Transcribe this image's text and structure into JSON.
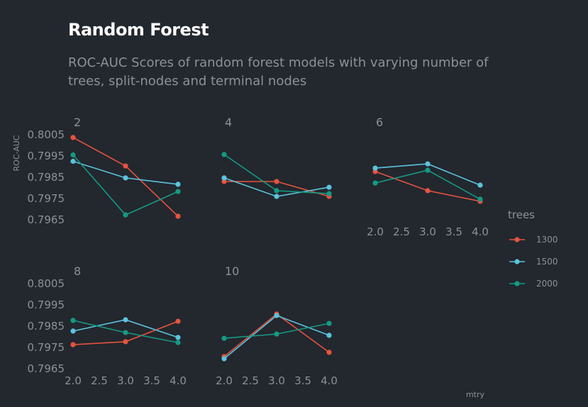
{
  "title": "Random Forest",
  "subtitle": "ROC-AUC Scores of random forest models with varying number of trees, split-nodes and terminal nodes",
  "chart_data": {
    "type": "line",
    "facet_by": "min_n",
    "xlabel": "mtry",
    "ylabel": "ROC-AUC",
    "x_ticks": [
      "2.0",
      "2.5",
      "3.0",
      "3.5",
      "4.0"
    ],
    "y_ticks": [
      "0.8005",
      "0.7995",
      "0.7985",
      "0.7975",
      "0.7965"
    ],
    "xlim": [
      2.0,
      4.0
    ],
    "ylim": [
      0.7964,
      0.8005
    ],
    "grid": false,
    "legend": {
      "title": "trees",
      "position": "right",
      "entries": [
        {
          "label": "1300",
          "color": "#e5533f"
        },
        {
          "label": "1500",
          "color": "#5bc3dc"
        },
        {
          "label": "2000",
          "color": "#149a83"
        }
      ]
    },
    "panels": [
      {
        "label": "2",
        "series": [
          {
            "name": "1300",
            "x": [
              2,
              3,
              4
            ],
            "y": [
              0.80037,
              0.79903,
              0.79667
            ]
          },
          {
            "name": "1500",
            "x": [
              2,
              3,
              4
            ],
            "y": [
              0.79925,
              0.79847,
              0.79817
            ]
          },
          {
            "name": "2000",
            "x": [
              2,
              3,
              4
            ],
            "y": [
              0.79955,
              0.79673,
              0.79783
            ]
          }
        ]
      },
      {
        "label": "4",
        "series": [
          {
            "name": "1300",
            "x": [
              2,
              3,
              4
            ],
            "y": [
              0.7983,
              0.7983,
              0.7976
            ]
          },
          {
            "name": "1500",
            "x": [
              2,
              3,
              4
            ],
            "y": [
              0.79847,
              0.7976,
              0.79803
            ]
          },
          {
            "name": "2000",
            "x": [
              2,
              3,
              4
            ],
            "y": [
              0.79957,
              0.79787,
              0.79773
            ]
          }
        ]
      },
      {
        "label": "6",
        "series": [
          {
            "name": "1300",
            "x": [
              2,
              3,
              4
            ],
            "y": [
              0.79877,
              0.79787,
              0.79737
            ]
          },
          {
            "name": "1500",
            "x": [
              2,
              3,
              4
            ],
            "y": [
              0.79893,
              0.79913,
              0.79813
            ]
          },
          {
            "name": "2000",
            "x": [
              2,
              3,
              4
            ],
            "y": [
              0.79823,
              0.79883,
              0.79747
            ]
          }
        ]
      },
      {
        "label": "8",
        "series": [
          {
            "name": "1300",
            "x": [
              2,
              3,
              4
            ],
            "y": [
              0.79763,
              0.79777,
              0.79873
            ]
          },
          {
            "name": "1500",
            "x": [
              2,
              3,
              4
            ],
            "y": [
              0.79827,
              0.7988,
              0.79797
            ]
          },
          {
            "name": "2000",
            "x": [
              2,
              3,
              4
            ],
            "y": [
              0.79877,
              0.7982,
              0.79773
            ]
          }
        ]
      },
      {
        "label": "10",
        "series": [
          {
            "name": "1300",
            "x": [
              2,
              3,
              4
            ],
            "y": [
              0.79707,
              0.79907,
              0.79727
            ]
          },
          {
            "name": "1500",
            "x": [
              2,
              3,
              4
            ],
            "y": [
              0.79697,
              0.799,
              0.79807
            ]
          },
          {
            "name": "2000",
            "x": [
              2,
              3,
              4
            ],
            "y": [
              0.79793,
              0.79813,
              0.79863
            ]
          }
        ]
      }
    ]
  }
}
